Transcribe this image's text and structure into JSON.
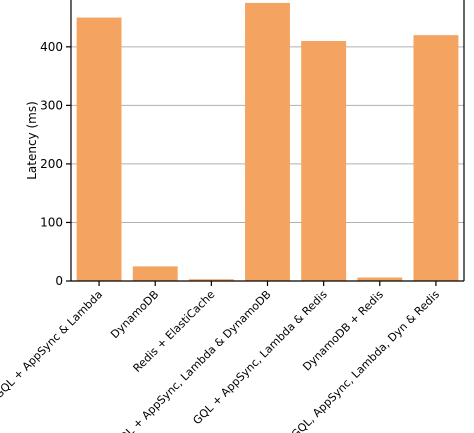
{
  "chart_data": {
    "type": "bar",
    "title": "",
    "xlabel": "",
    "ylabel": "Latency (ms)",
    "categories": [
      "GQL + AppSync & Lambda",
      "DynamoDB",
      "Redis + ElastiCache",
      "GQL + AppSync, Lambda & DynamoDB",
      "GQL + AppSync, Lambda & Redis",
      "DynamoDB + Redis",
      "GQL, AppSync, Lambda, Dyn & Redis"
    ],
    "values": [
      450,
      25,
      3,
      475,
      410,
      6,
      420
    ],
    "ylim": [
      0,
      480
    ],
    "yticks": [
      0,
      100,
      200,
      300,
      400
    ],
    "grid": true,
    "colors": {
      "bar": "#f4a460",
      "grid": "#b0b0b0",
      "axis": "#000000"
    }
  }
}
